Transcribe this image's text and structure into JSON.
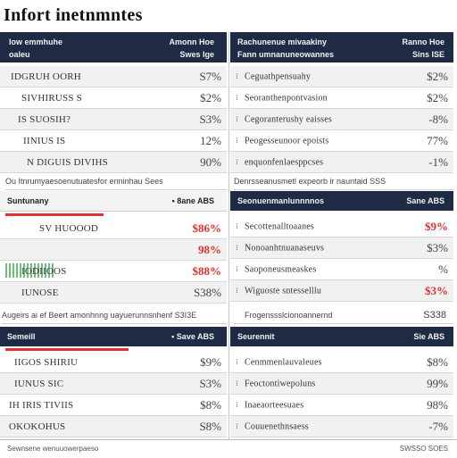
{
  "page": {
    "title": "Infort inetnmntes"
  },
  "left": {
    "section1": {
      "header_left": [
        "Iow emmhuhe",
        "oaleu"
      ],
      "header_right": [
        "Amonn Hoe",
        "Swes Ige"
      ],
      "rows": [
        {
          "label": "IDGRUH OORH",
          "value": "S7%"
        },
        {
          "label": "SIVHIRUSS S",
          "value": "$2%"
        },
        {
          "label": "IS SUOSIH?",
          "value": "S3%"
        },
        {
          "label": "IINIUS IS",
          "value": "12%"
        },
        {
          "label": "N DIGUIS DIVIHS",
          "value": "90%"
        }
      ],
      "note": "Ou Itnrumyaesoenutuatesfor enninhau Sees"
    },
    "section2": {
      "header_left": "Suntunany",
      "header_right": "• 8ane ABS",
      "rows": [
        {
          "label": "SV HUOOOD",
          "value": "$86%",
          "red": true
        },
        {
          "label": "",
          "value": "98%",
          "red": true
        },
        {
          "label": "IODIIOOS",
          "value": "$88%",
          "red": true
        },
        {
          "label": "IUNOSE",
          "value": "S38%"
        }
      ],
      "note": "Augeirs ai ef Beert amonhnng uayuerunnsnhenf S3I3E"
    },
    "section3": {
      "header_left": "Semeill",
      "header_right": "• Save ABS",
      "rows": [
        {
          "label": "IIGOS SHIRIU",
          "value": "$9%"
        },
        {
          "label": "IUNUS SIC",
          "value": "S3%"
        },
        {
          "label": "IH IRIS TIVIIS",
          "value": "$8%"
        },
        {
          "label": "OKOKOHUS",
          "value": "S8%"
        }
      ]
    }
  },
  "right": {
    "section1": {
      "header_left": [
        "Rachunenue mivaakiny",
        "Fann umnanuneowannes"
      ],
      "header_right": [
        "Ranno Hoe",
        "Sins ISE"
      ],
      "rows": [
        {
          "label": "Ceguathpensuahy",
          "value": "$2%"
        },
        {
          "label": "Seoranthenpontvasion",
          "value": "$2%"
        },
        {
          "label": "Cegoranterushy eaisses",
          "value": "-8%"
        },
        {
          "label": "Peogesseunoor epoists",
          "value": "77%"
        },
        {
          "label": "enquonfenlaesppcses",
          "value": "-1%"
        }
      ],
      "note": "Denrsseanusmetl expeorb ir nauntaid SSS"
    },
    "section2": {
      "header_left": "Seonuenmanlunnnnos",
      "header_right": "Sane ABS",
      "rows": [
        {
          "label": "Secottenalltoaanes",
          "value": "$9%",
          "red": true
        },
        {
          "label": "Nonoanhtnuanaseuvs",
          "value": "$3%"
        },
        {
          "label": "Saoponeusmeaskes",
          "value": "%"
        },
        {
          "label": "Wiguoste sntesselllu",
          "value": "$3%",
          "red": true
        }
      ],
      "note": "Frogenssslcionoannernd",
      "note_right": "S338"
    },
    "section3": {
      "header_left": "Seurennit",
      "header_right": "Sie ABS",
      "rows": [
        {
          "label": "Cenmmenlauvaleues",
          "value": "$8%"
        },
        {
          "label": "Feoctontiwepoluns",
          "value": "99%"
        },
        {
          "label": "Inaeaorteesuaes",
          "value": "98%"
        },
        {
          "label": "Couuenethnsaess",
          "value": "-7%"
        }
      ]
    }
  },
  "footer": {
    "left": "Sewnsene wenuuowerpaeso",
    "right": "SWSSO SOES"
  }
}
